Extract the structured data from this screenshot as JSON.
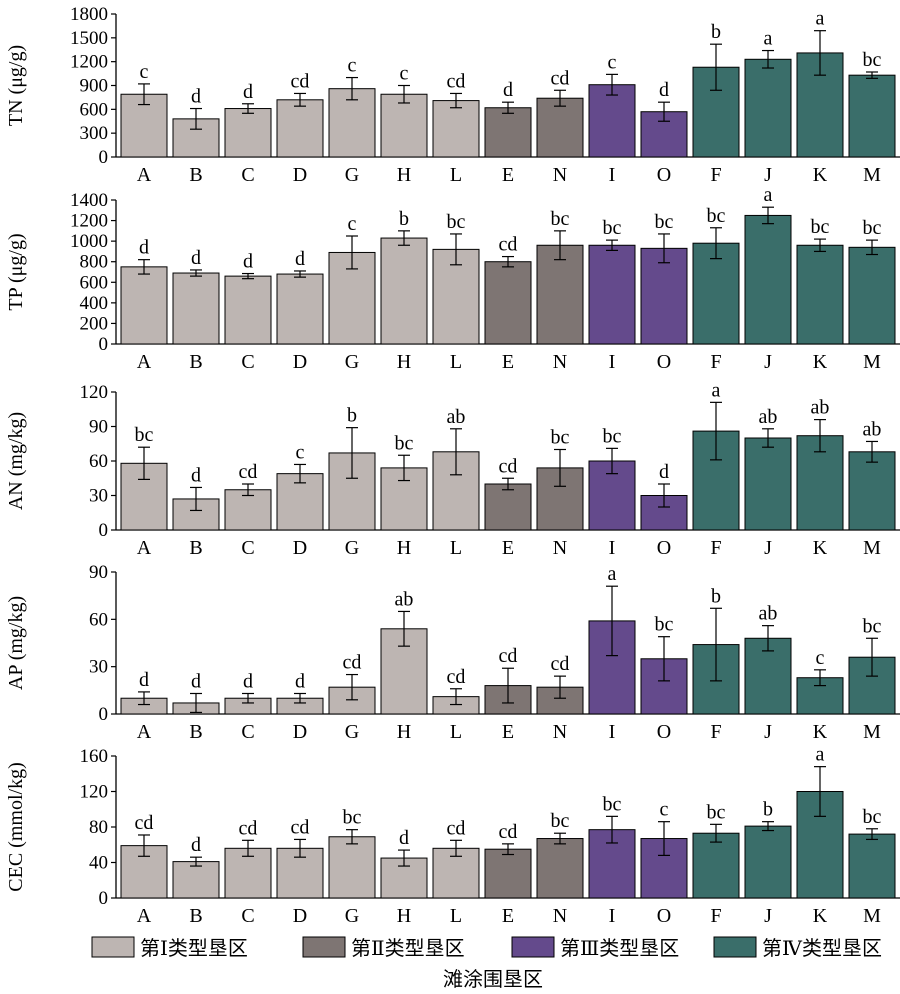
{
  "chart_data": [
    {
      "type": "bar",
      "ylabel": "TN (μg/g)",
      "ylim": [
        0,
        1800
      ],
      "yticks": [
        0,
        300,
        600,
        900,
        1200,
        1500,
        1800
      ],
      "categories": [
        "A",
        "B",
        "C",
        "D",
        "G",
        "H",
        "L",
        "E",
        "N",
        "I",
        "O",
        "F",
        "J",
        "K",
        "M"
      ],
      "values": [
        790,
        480,
        610,
        720,
        860,
        790,
        710,
        620,
        740,
        910,
        570,
        1130,
        1230,
        1310,
        1030
      ],
      "errors": [
        130,
        130,
        60,
        80,
        140,
        110,
        90,
        70,
        100,
        130,
        120,
        290,
        110,
        280,
        40
      ],
      "letters": [
        "c",
        "d",
        "d",
        "cd",
        "c",
        "c",
        "cd",
        "d",
        "cd",
        "c",
        "d",
        "b",
        "a",
        "a",
        "bc"
      ]
    },
    {
      "type": "bar",
      "ylabel": "TP (μg/g)",
      "ylim": [
        0,
        1400
      ],
      "yticks": [
        0,
        200,
        400,
        600,
        800,
        1000,
        1200,
        1400
      ],
      "categories": [
        "A",
        "B",
        "C",
        "D",
        "G",
        "H",
        "L",
        "E",
        "N",
        "I",
        "O",
        "F",
        "J",
        "K",
        "M"
      ],
      "values": [
        750,
        690,
        660,
        680,
        890,
        1030,
        920,
        800,
        960,
        960,
        930,
        980,
        1250,
        960,
        940
      ],
      "errors": [
        70,
        30,
        25,
        30,
        160,
        70,
        150,
        50,
        140,
        50,
        140,
        150,
        80,
        60,
        70
      ],
      "letters": [
        "d",
        "d",
        "d",
        "d",
        "c",
        "b",
        "bc",
        "cd",
        "bc",
        "bc",
        "bc",
        "bc",
        "a",
        "bc",
        "bc"
      ]
    },
    {
      "type": "bar",
      "ylabel": "AN (mg/kg)",
      "ylim": [
        0,
        120
      ],
      "yticks": [
        0,
        30,
        60,
        90,
        120
      ],
      "categories": [
        "A",
        "B",
        "C",
        "D",
        "G",
        "H",
        "L",
        "E",
        "N",
        "I",
        "O",
        "F",
        "J",
        "K",
        "M"
      ],
      "values": [
        58,
        27,
        35,
        49,
        67,
        54,
        68,
        40,
        54,
        60,
        30,
        86,
        80,
        82,
        68
      ],
      "errors": [
        14,
        10,
        5,
        8,
        22,
        11,
        20,
        5,
        16,
        11,
        10,
        25,
        8,
        14,
        9
      ],
      "letters": [
        "bc",
        "d",
        "cd",
        "c",
        "b",
        "bc",
        "ab",
        "cd",
        "bc",
        "bc",
        "d",
        "a",
        "ab",
        "ab",
        "ab"
      ]
    },
    {
      "type": "bar",
      "ylabel": "AP (mg/kg)",
      "ylim": [
        0,
        90
      ],
      "yticks": [
        0,
        30,
        60,
        90
      ],
      "categories": [
        "A",
        "B",
        "C",
        "D",
        "G",
        "H",
        "L",
        "E",
        "N",
        "I",
        "O",
        "F",
        "J",
        "K",
        "M"
      ],
      "values": [
        10,
        7,
        10,
        10,
        17,
        54,
        11,
        18,
        17,
        59,
        35,
        44,
        48,
        23,
        36
      ],
      "errors": [
        4,
        6,
        3,
        3,
        8,
        11,
        5,
        11,
        7,
        22,
        14,
        23,
        8,
        5,
        12
      ],
      "letters": [
        "d",
        "d",
        "d",
        "d",
        "cd",
        "ab",
        "cd",
        "cd",
        "cd",
        "a",
        "bc",
        "b",
        "ab",
        "c",
        "bc"
      ]
    },
    {
      "type": "bar",
      "ylabel": "CEC (mmol/kg)",
      "ylim": [
        0,
        160
      ],
      "yticks": [
        0,
        40,
        80,
        120,
        160
      ],
      "categories": [
        "A",
        "B",
        "C",
        "D",
        "G",
        "H",
        "L",
        "E",
        "N",
        "I",
        "O",
        "F",
        "J",
        "K",
        "M"
      ],
      "values": [
        59,
        41,
        56,
        56,
        69,
        45,
        56,
        55,
        67,
        77,
        67,
        73,
        81,
        120,
        72
      ],
      "errors": [
        12,
        5,
        9,
        10,
        8,
        9,
        9,
        6,
        6,
        15,
        19,
        10,
        5,
        28,
        6
      ],
      "letters": [
        "cd",
        "d",
        "cd",
        "cd",
        "bc",
        "d",
        "cd",
        "cd",
        "bc",
        "bc",
        "c",
        "bc",
        "b",
        "a",
        "bc"
      ]
    }
  ],
  "groups": [
    {
      "name": "第Ⅰ类型垦区",
      "color": "#bdb5b2",
      "categories": [
        "A",
        "B",
        "C",
        "D",
        "G",
        "H",
        "L"
      ]
    },
    {
      "name": "第Ⅱ类型垦区",
      "color": "#7e7573",
      "categories": [
        "E",
        "N"
      ]
    },
    {
      "name": "第Ⅲ类型垦区",
      "color": "#644a8c",
      "categories": [
        "I",
        "O"
      ]
    },
    {
      "name": "第Ⅳ类型垦区",
      "color": "#3a6e6a",
      "categories": [
        "F",
        "J",
        "K",
        "M"
      ]
    }
  ],
  "xlabel": "滩涂围垦区"
}
